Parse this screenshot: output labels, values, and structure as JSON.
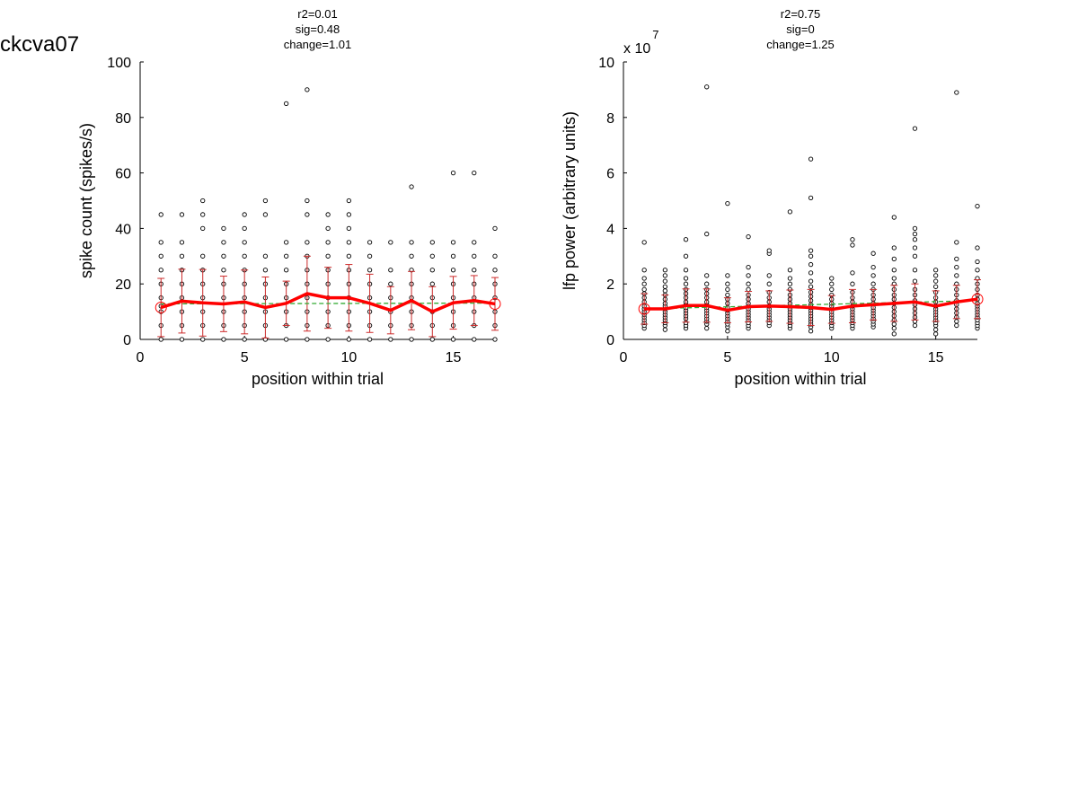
{
  "figure": {
    "suptitle": "ckcva07"
  },
  "chart_data": [
    {
      "type": "scatter",
      "title_lines": [
        "r2=0.01",
        "sig=0.48",
        "change=1.01"
      ],
      "xlabel": "position within trial",
      "ylabel": "spike count (spikes/s)",
      "xlim": [
        0,
        17
      ],
      "ylim": [
        0,
        100
      ],
      "xticks": [
        0,
        5,
        10,
        15
      ],
      "yticks": [
        0,
        20,
        40,
        60,
        80,
        100
      ],
      "exponent_label": "",
      "grid": false,
      "colors": {
        "points": "#000000",
        "mean": "#ff0000",
        "errorbar": "#cc2a2a",
        "fit": "#33aa33"
      },
      "mean": {
        "x": [
          1,
          2,
          3,
          4,
          5,
          6,
          7,
          8,
          9,
          10,
          11,
          12,
          13,
          14,
          15,
          16,
          17
        ],
        "y": [
          11.5,
          13.8,
          13.2,
          12.8,
          13.5,
          11.5,
          13,
          16.5,
          15,
          15,
          13,
          10.5,
          14,
          10,
          13.2,
          14,
          12.8
        ],
        "err": [
          10.5,
          11.5,
          12,
          10,
          11.5,
          11,
          8,
          13.5,
          11,
          12,
          10.5,
          8.5,
          10.5,
          9,
          9.5,
          9,
          9.5
        ]
      },
      "fit": {
        "x": [
          1,
          17
        ],
        "y": [
          12.8,
          13.1
        ]
      },
      "points": [
        {
          "x": 1,
          "y": [
            0,
            5,
            10,
            12,
            15,
            20,
            25,
            30,
            35,
            45
          ]
        },
        {
          "x": 2,
          "y": [
            0,
            5,
            10,
            15,
            20,
            25,
            30,
            35,
            45
          ]
        },
        {
          "x": 3,
          "y": [
            0,
            5,
            10,
            15,
            20,
            25,
            30,
            40,
            45,
            50
          ]
        },
        {
          "x": 4,
          "y": [
            0,
            5,
            10,
            15,
            20,
            25,
            30,
            35,
            40
          ]
        },
        {
          "x": 5,
          "y": [
            0,
            5,
            10,
            15,
            20,
            25,
            30,
            35,
            40,
            45
          ]
        },
        {
          "x": 6,
          "y": [
            0,
            5,
            10,
            15,
            20,
            25,
            30,
            45,
            50
          ]
        },
        {
          "x": 7,
          "y": [
            0,
            5,
            10,
            15,
            20,
            25,
            30,
            35,
            85
          ]
        },
        {
          "x": 8,
          "y": [
            0,
            5,
            10,
            15,
            20,
            25,
            30,
            35,
            45,
            50,
            90
          ]
        },
        {
          "x": 9,
          "y": [
            0,
            5,
            10,
            15,
            20,
            25,
            30,
            35,
            40,
            45
          ]
        },
        {
          "x": 10,
          "y": [
            0,
            5,
            10,
            15,
            20,
            25,
            30,
            35,
            40,
            45,
            50
          ]
        },
        {
          "x": 11,
          "y": [
            0,
            5,
            10,
            15,
            20,
            25,
            30,
            35
          ]
        },
        {
          "x": 12,
          "y": [
            0,
            5,
            10,
            15,
            20,
            25,
            35
          ]
        },
        {
          "x": 13,
          "y": [
            0,
            5,
            10,
            15,
            20,
            25,
            30,
            35,
            55
          ]
        },
        {
          "x": 14,
          "y": [
            0,
            5,
            10,
            15,
            20,
            25,
            30,
            35
          ]
        },
        {
          "x": 15,
          "y": [
            0,
            5,
            10,
            15,
            20,
            25,
            30,
            35,
            60
          ]
        },
        {
          "x": 16,
          "y": [
            0,
            5,
            10,
            15,
            20,
            25,
            30,
            35,
            60
          ]
        },
        {
          "x": 17,
          "y": [
            0,
            5,
            10,
            15,
            20,
            25,
            30,
            40
          ]
        }
      ]
    },
    {
      "type": "scatter",
      "title_lines": [
        "r2=0.75",
        "sig=0",
        "change=1.25"
      ],
      "xlabel": "position within trial",
      "ylabel": "lfp power (arbitrary units)",
      "xlim": [
        0,
        17
      ],
      "ylim": [
        0,
        10
      ],
      "xticks": [
        0,
        5,
        10,
        15
      ],
      "yticks": [
        0,
        2,
        4,
        6,
        8,
        10
      ],
      "exponent_label": "x 10",
      "exponent_power": "7",
      "grid": false,
      "colors": {
        "points": "#000000",
        "mean": "#ff0000",
        "errorbar": "#cc2a2a",
        "fit": "#33aa33"
      },
      "mean": {
        "x": [
          1,
          2,
          3,
          4,
          5,
          6,
          7,
          8,
          9,
          10,
          11,
          12,
          13,
          14,
          15,
          16,
          17
        ],
        "y": [
          1.1,
          1.1,
          1.22,
          1.22,
          1.05,
          1.18,
          1.2,
          1.18,
          1.15,
          1.08,
          1.2,
          1.25,
          1.3,
          1.35,
          1.2,
          1.35,
          1.45
        ],
        "err": [
          0.55,
          0.5,
          0.6,
          0.6,
          0.45,
          0.55,
          0.55,
          0.6,
          0.65,
          0.5,
          0.6,
          0.55,
          0.65,
          0.65,
          0.55,
          0.6,
          0.7
        ]
      },
      "fit": {
        "x": [
          1,
          17
        ],
        "y": [
          1.1,
          1.4
        ]
      },
      "points": [
        {
          "x": 1,
          "y": [
            0.4,
            0.5,
            0.6,
            0.7,
            0.8,
            0.9,
            1.0,
            1.1,
            1.2,
            1.35,
            1.5,
            1.65,
            1.8,
            2.0,
            2.2,
            2.5,
            3.5
          ]
        },
        {
          "x": 2,
          "y": [
            0.35,
            0.5,
            0.6,
            0.7,
            0.8,
            0.9,
            1.0,
            1.1,
            1.2,
            1.3,
            1.45,
            1.6,
            1.75,
            1.9,
            2.1,
            2.3,
            2.5
          ]
        },
        {
          "x": 3,
          "y": [
            0.4,
            0.5,
            0.6,
            0.75,
            0.85,
            0.95,
            1.05,
            1.15,
            1.25,
            1.35,
            1.5,
            1.65,
            1.8,
            2.0,
            2.2,
            2.5,
            3.0,
            3.6
          ]
        },
        {
          "x": 4,
          "y": [
            0.4,
            0.55,
            0.65,
            0.75,
            0.85,
            0.95,
            1.05,
            1.15,
            1.25,
            1.35,
            1.5,
            1.65,
            1.8,
            2.0,
            2.3,
            3.8,
            9.1
          ]
        },
        {
          "x": 5,
          "y": [
            0.3,
            0.45,
            0.55,
            0.65,
            0.75,
            0.85,
            0.95,
            1.05,
            1.15,
            1.3,
            1.45,
            1.6,
            1.8,
            2.0,
            2.3,
            4.9
          ]
        },
        {
          "x": 6,
          "y": [
            0.4,
            0.5,
            0.6,
            0.7,
            0.8,
            0.9,
            1.0,
            1.1,
            1.2,
            1.3,
            1.45,
            1.6,
            1.8,
            2.0,
            2.3,
            2.6,
            3.7
          ]
        },
        {
          "x": 7,
          "y": [
            0.5,
            0.6,
            0.7,
            0.8,
            0.9,
            1.0,
            1.1,
            1.2,
            1.35,
            1.5,
            1.7,
            2.0,
            2.3,
            3.1,
            3.2
          ]
        },
        {
          "x": 8,
          "y": [
            0.4,
            0.5,
            0.6,
            0.7,
            0.8,
            0.9,
            1.0,
            1.1,
            1.2,
            1.3,
            1.45,
            1.6,
            1.8,
            2.0,
            2.2,
            2.5,
            4.6
          ]
        },
        {
          "x": 9,
          "y": [
            0.3,
            0.45,
            0.55,
            0.65,
            0.75,
            0.85,
            0.95,
            1.05,
            1.15,
            1.25,
            1.4,
            1.55,
            1.7,
            1.9,
            2.1,
            2.4,
            2.7,
            3.0,
            3.2,
            5.1,
            6.5
          ]
        },
        {
          "x": 10,
          "y": [
            0.4,
            0.5,
            0.6,
            0.7,
            0.8,
            0.9,
            1.0,
            1.1,
            1.2,
            1.3,
            1.45,
            1.6,
            1.8,
            2.0,
            2.2
          ]
        },
        {
          "x": 11,
          "y": [
            0.4,
            0.5,
            0.6,
            0.7,
            0.8,
            0.9,
            1.0,
            1.1,
            1.2,
            1.35,
            1.5,
            1.7,
            2.0,
            2.4,
            3.4,
            3.6
          ]
        },
        {
          "x": 12,
          "y": [
            0.45,
            0.55,
            0.65,
            0.75,
            0.85,
            0.95,
            1.05,
            1.15,
            1.3,
            1.45,
            1.6,
            1.8,
            2.0,
            2.3,
            2.6,
            3.1
          ]
        },
        {
          "x": 13,
          "y": [
            0.2,
            0.4,
            0.55,
            0.7,
            0.85,
            1.0,
            1.15,
            1.3,
            1.45,
            1.6,
            1.8,
            2.0,
            2.2,
            2.5,
            2.9,
            3.3,
            4.4
          ]
        },
        {
          "x": 14,
          "y": [
            0.5,
            0.65,
            0.8,
            0.95,
            1.1,
            1.25,
            1.4,
            1.6,
            1.8,
            2.1,
            2.5,
            3.0,
            3.3,
            3.6,
            3.8,
            4.0,
            7.6
          ]
        },
        {
          "x": 15,
          "y": [
            0.2,
            0.35,
            0.5,
            0.6,
            0.7,
            0.8,
            0.9,
            1.0,
            1.1,
            1.2,
            1.35,
            1.5,
            1.7,
            1.9,
            2.1,
            2.3,
            2.5
          ]
        },
        {
          "x": 16,
          "y": [
            0.5,
            0.65,
            0.8,
            0.95,
            1.1,
            1.25,
            1.4,
            1.6,
            1.8,
            2.0,
            2.3,
            2.6,
            2.9,
            3.5,
            8.9
          ]
        },
        {
          "x": 17,
          "y": [
            0.4,
            0.5,
            0.6,
            0.7,
            0.8,
            0.9,
            1.0,
            1.1,
            1.2,
            1.3,
            1.45,
            1.6,
            1.8,
            2.0,
            2.2,
            2.5,
            2.8,
            3.3,
            4.8
          ]
        }
      ]
    }
  ]
}
